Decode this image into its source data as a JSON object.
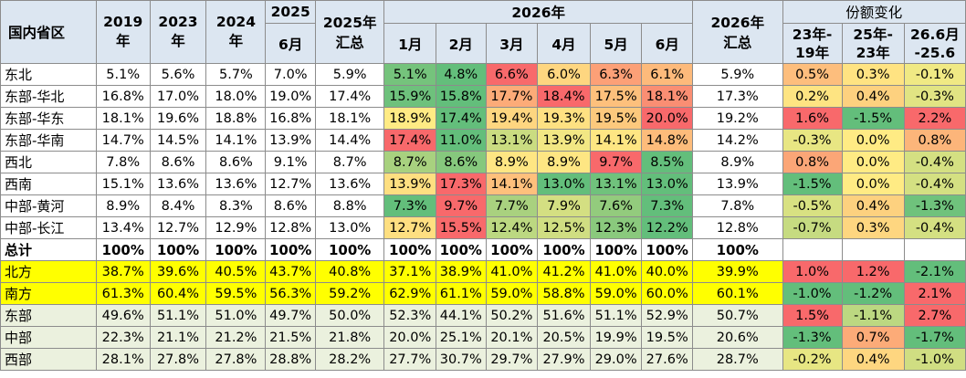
{
  "header": {
    "region": "国内省区",
    "y2019": "2019\n年",
    "y2023": "2023\n年",
    "y2024": "2024\n年",
    "y2025": "2025",
    "jun": "6月",
    "total2025": "2025年\n汇总",
    "y2026": "2026年",
    "months": [
      "1月",
      "2月",
      "3月",
      "4月",
      "5月",
      "6月"
    ],
    "total2026": "2026年\n汇总",
    "share_change": "份额变化",
    "changes": [
      "23年-\n19年",
      "25年-\n23年",
      "26.6月\n-25.6"
    ]
  },
  "colors": {
    "header_bg": "#dce6f1",
    "highlight_yellow": "#ffff00",
    "light_green_rows": "#ebf1de",
    "scale_green": "#63be7b",
    "scale_yellow": "#ffeb84",
    "scale_red": "#f8696b"
  },
  "rows": [
    {
      "type": "region",
      "cells": [
        "东北",
        "5.1%",
        "5.6%",
        "5.7%",
        "7.0%",
        "5.9%",
        "5.1%",
        "4.8%",
        "6.6%",
        "6.0%",
        "6.3%",
        "6.1%",
        "5.9%",
        "0.5%",
        "0.3%",
        "-0.1%"
      ],
      "month_bg": [
        "#75c37c",
        "#63be7b",
        "#f8696b",
        "#fed680",
        "#fca077",
        "#fdba7b"
      ],
      "change_bg": [
        "#fdbe7d",
        "#ffe382",
        "#f0e984"
      ]
    },
    {
      "type": "region",
      "cells": [
        "东部-华北",
        "16.8%",
        "17.0%",
        "18.0%",
        "19.0%",
        "17.4%",
        "15.9%",
        "15.8%",
        "17.7%",
        "18.4%",
        "17.5%",
        "18.1%",
        "17.3%",
        "0.2%",
        "0.4%",
        "-0.3%"
      ],
      "month_bg": [
        "#6ec17c",
        "#63be7b",
        "#fcab78",
        "#f8696b",
        "#fdc07c",
        "#fa8e73"
      ],
      "change_bg": [
        "#fee482",
        "#fdd17f",
        "#e1e483"
      ]
    },
    {
      "type": "region",
      "cells": [
        "东部-华东",
        "18.1%",
        "19.6%",
        "18.8%",
        "16.8%",
        "18.1%",
        "18.9%",
        "17.4%",
        "19.4%",
        "19.3%",
        "19.5%",
        "20.0%",
        "19.2%",
        "1.6%",
        "-1.5%",
        "2.2%"
      ],
      "month_bg": [
        "#ffeb84",
        "#63be7b",
        "#fed680",
        "#fee182",
        "#fdc97d",
        "#f8696b"
      ],
      "change_bg": [
        "#f8696b",
        "#63be7b",
        "#f8696b"
      ]
    },
    {
      "type": "region",
      "cells": [
        "东部-华南",
        "14.7%",
        "14.5%",
        "14.1%",
        "13.9%",
        "14.4%",
        "17.4%",
        "11.0%",
        "13.1%",
        "13.9%",
        "14.1%",
        "14.8%",
        "14.2%",
        "-0.3%",
        "0.0%",
        "0.8%"
      ],
      "month_bg": [
        "#f8696b",
        "#63be7b",
        "#cadc81",
        "#f2e784",
        "#fee683",
        "#fdbc7b"
      ],
      "change_bg": [
        "#e8e683",
        "#ffeb84",
        "#fcb57a"
      ]
    },
    {
      "type": "region",
      "cells": [
        "西北",
        "7.8%",
        "8.6%",
        "8.6%",
        "9.1%",
        "8.7%",
        "8.7%",
        "8.6%",
        "8.9%",
        "8.9%",
        "9.7%",
        "8.5%",
        "8.9%",
        "0.8%",
        "0.0%",
        "-0.4%"
      ],
      "month_bg": [
        "#a8d17f",
        "#86c87d",
        "#fee683",
        "#fee683",
        "#f8696b",
        "#63be7b"
      ],
      "change_bg": [
        "#fba677",
        "#ffeb84",
        "#d4e082"
      ]
    },
    {
      "type": "region",
      "cells": [
        "西南",
        "15.1%",
        "13.6%",
        "13.6%",
        "12.7%",
        "13.6%",
        "13.9%",
        "17.3%",
        "14.1%",
        "13.0%",
        "13.1%",
        "13.0%",
        "13.9%",
        "-1.5%",
        "0.0%",
        "-0.4%"
      ],
      "month_bg": [
        "#fedf81",
        "#f8696b",
        "#fec07c",
        "#63be7b",
        "#70c27c",
        "#63be7b"
      ],
      "change_bg": [
        "#63be7b",
        "#ffeb84",
        "#d4e082"
      ]
    },
    {
      "type": "region",
      "cells": [
        "中部-黄河",
        "8.9%",
        "8.4%",
        "8.3%",
        "8.6%",
        "8.8%",
        "7.3%",
        "9.7%",
        "7.7%",
        "7.9%",
        "7.6%",
        "7.3%",
        "7.8%",
        "-0.5%",
        "0.4%",
        "-1.3%"
      ],
      "month_bg": [
        "#63be7b",
        "#f8696b",
        "#a9d17f",
        "#d4df82",
        "#93cb7d",
        "#63be7b"
      ],
      "change_bg": [
        "#d8e182",
        "#fdd17f",
        "#6fc27c"
      ]
    },
    {
      "type": "region",
      "cells": [
        "中部-长江",
        "13.4%",
        "12.7%",
        "12.9%",
        "12.8%",
        "13.0%",
        "12.7%",
        "15.5%",
        "12.4%",
        "12.5%",
        "12.3%",
        "12.2%",
        "12.8%",
        "-0.7%",
        "0.3%",
        "-0.4%"
      ],
      "month_bg": [
        "#fedf81",
        "#f8696b",
        "#bcd881",
        "#d0de82",
        "#8ac97d",
        "#63be7b"
      ],
      "change_bg": [
        "#c6db81",
        "#fed680",
        "#d4e082"
      ]
    },
    {
      "type": "total",
      "cells": [
        "总计",
        "100%",
        "100%",
        "100%",
        "100%",
        "100%",
        "100%",
        "100%",
        "100%",
        "100%",
        "100%",
        "100%",
        "100%",
        "",
        "",
        ""
      ]
    },
    {
      "type": "yellow",
      "cells": [
        "北方",
        "38.7%",
        "39.6%",
        "40.5%",
        "43.7%",
        "40.8%",
        "37.1%",
        "38.9%",
        "41.0%",
        "41.2%",
        "41.0%",
        "40.0%",
        "39.9%",
        "1.0%",
        "1.2%",
        "-2.1%"
      ],
      "change_bg": [
        "#f8696b",
        "#f8696b",
        "#63be7b"
      ]
    },
    {
      "type": "yellow",
      "cells": [
        "南方",
        "61.3%",
        "60.4%",
        "59.5%",
        "56.3%",
        "59.2%",
        "62.9%",
        "61.1%",
        "59.0%",
        "58.8%",
        "59.0%",
        "60.0%",
        "60.1%",
        "-1.0%",
        "-1.2%",
        "2.1%"
      ],
      "change_bg": [
        "#63be7b",
        "#63be7b",
        "#f8696b"
      ]
    },
    {
      "type": "green",
      "cells": [
        "东部",
        "49.6%",
        "51.1%",
        "51.0%",
        "49.7%",
        "50.0%",
        "52.3%",
        "44.1%",
        "50.2%",
        "51.6%",
        "51.1%",
        "52.9%",
        "50.7%",
        "1.5%",
        "-1.1%",
        "2.7%"
      ],
      "change_bg": [
        "#f8696b",
        "#bcd881",
        "#f8696b"
      ]
    },
    {
      "type": "green",
      "cells": [
        "中部",
        "22.3%",
        "21.1%",
        "21.2%",
        "21.5%",
        "21.8%",
        "20.0%",
        "25.1%",
        "20.1%",
        "20.5%",
        "19.9%",
        "19.5%",
        "20.6%",
        "-1.3%",
        "0.7%",
        "-1.7%"
      ],
      "change_bg": [
        "#63be7b",
        "#fcab78",
        "#63be7b"
      ]
    },
    {
      "type": "green",
      "cells": [
        "西部",
        "28.1%",
        "27.8%",
        "27.8%",
        "28.8%",
        "28.2%",
        "27.7%",
        "30.7%",
        "29.7%",
        "27.9%",
        "29.0%",
        "27.6%",
        "28.7%",
        "-0.2%",
        "0.4%",
        "-1.0%"
      ],
      "change_bg": [
        "#e7e683",
        "#fed680",
        "#d0de82"
      ]
    }
  ]
}
